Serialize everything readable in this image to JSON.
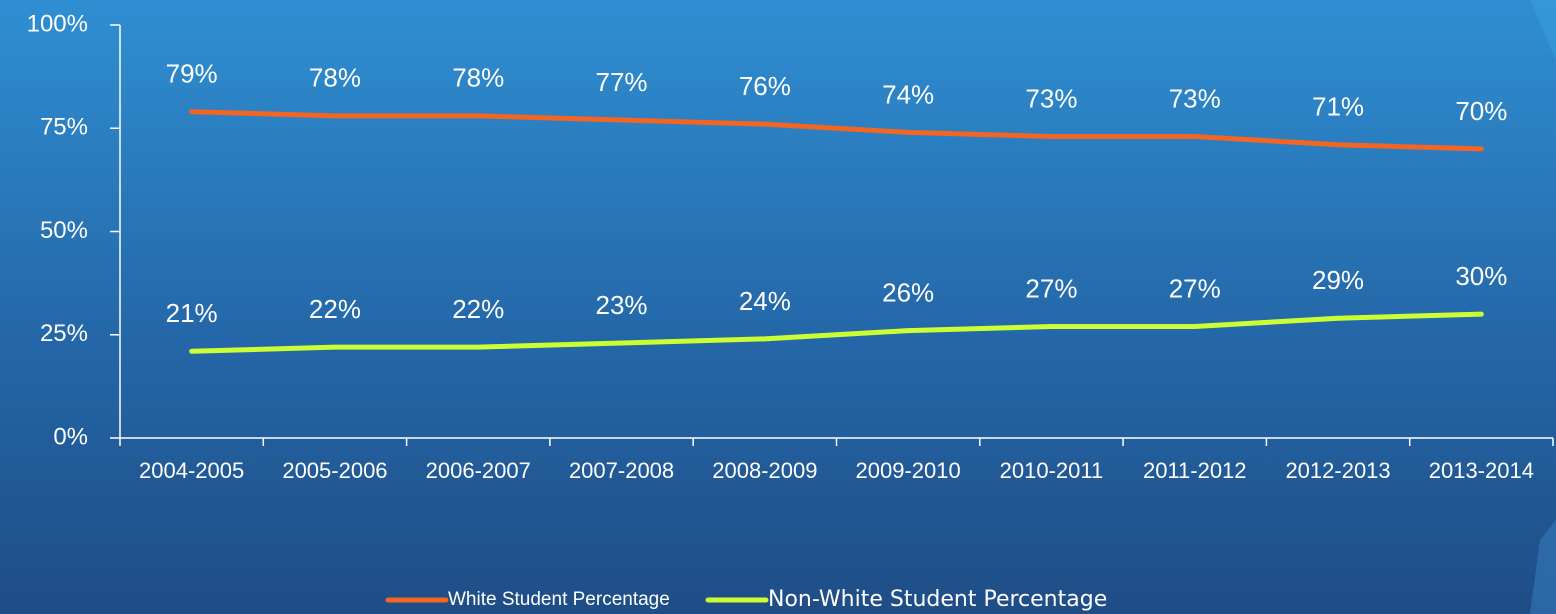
{
  "chart_data": {
    "type": "line",
    "categories": [
      "2004-2005",
      "2005-2006",
      "2006-2007",
      "2007-2008",
      "2008-2009",
      "2009-2010",
      "2010-2011",
      "2011-2012",
      "2012-2013",
      "2013-2014"
    ],
    "series": [
      {
        "name": "White Student Percentage",
        "color": "#f26522",
        "values": [
          79,
          78,
          78,
          77,
          76,
          74,
          73,
          73,
          71,
          70
        ],
        "value_labels": [
          "79%",
          "78%",
          "78%",
          "77%",
          "76%",
          "74%",
          "73%",
          "73%",
          "71%",
          "70%"
        ]
      },
      {
        "name": "Non-White Student Percentage",
        "color": "#ccff33",
        "values": [
          21,
          22,
          22,
          23,
          24,
          26,
          27,
          27,
          29,
          30
        ],
        "value_labels": [
          "21%",
          "22%",
          "22%",
          "23%",
          "24%",
          "26%",
          "27%",
          "27%",
          "29%",
          "30%"
        ]
      }
    ],
    "ylim": [
      0,
      100
    ],
    "yticks": [
      {
        "value": 0,
        "label": "0%"
      },
      {
        "value": 25,
        "label": "25%"
      },
      {
        "value": 50,
        "label": "50%"
      },
      {
        "value": 75,
        "label": "75%"
      },
      {
        "value": 100,
        "label": "100%"
      }
    ],
    "grid": false,
    "legend": "bottom"
  }
}
